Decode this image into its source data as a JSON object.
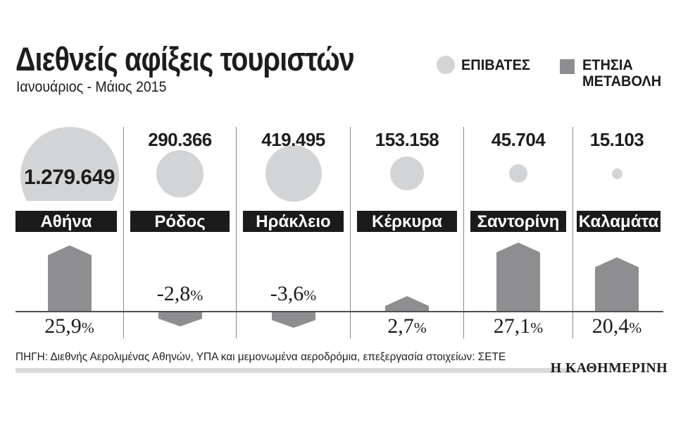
{
  "header": {
    "title": "Διεθνείς αφίξεις τουριστών",
    "subtitle": "Ιανουάριος - Μάιος 2015"
  },
  "legend": {
    "passengers_label": "ΕΠΙΒΑΤΕΣ",
    "change_label_line1": "ΕΤΗΣΙΑ",
    "change_label_line2": "ΜΕΤΑΒΟΛΗ",
    "passenger_color": "#d3d4d5",
    "change_color": "#8e8e90"
  },
  "symbols": {
    "percent": "%"
  },
  "cities": [
    {
      "name": "Αθήνα",
      "passengers": 1279649,
      "passengers_label": "1.279.649",
      "change": 25.9,
      "change_label": "25,9"
    },
    {
      "name": "Ρόδος",
      "passengers": 290366,
      "passengers_label": "290.366",
      "change": -2.8,
      "change_label": "-2,8"
    },
    {
      "name": "Ηράκλειο",
      "passengers": 419495,
      "passengers_label": "419.495",
      "change": -3.6,
      "change_label": "-3,6"
    },
    {
      "name": "Κέρκυρα",
      "passengers": 153158,
      "passengers_label": "153.158",
      "change": 2.7,
      "change_label": "2,7"
    },
    {
      "name": "Σαντορίνη",
      "passengers": 45704,
      "passengers_label": "45.704",
      "change": 27.1,
      "change_label": "27,1"
    },
    {
      "name": "Καλαμάτα",
      "passengers": 15103,
      "passengers_label": "15.103",
      "change": 20.4,
      "change_label": "20,4"
    }
  ],
  "chart_data": {
    "type": "bar",
    "subtype": "bubble-and-arrow-infographic",
    "title": "Διεθνείς αφίξεις τουριστών",
    "subtitle": "Ιανουάριος - Μάιος 2015",
    "categories": [
      "Αθήνα",
      "Ρόδος",
      "Ηράκλειο",
      "Κέρκυρα",
      "Σαντορίνη",
      "Καλαμάτα"
    ],
    "series": [
      {
        "name": "ΕΠΙΒΑΤΕΣ",
        "encoding": "circle-area",
        "values": [
          1279649,
          290366,
          419495,
          153158,
          45704,
          15103
        ]
      },
      {
        "name": "ΕΤΗΣΙΑ ΜΕΤΑΒΟΛΗ",
        "unit": "%",
        "encoding": "arrow-height",
        "values": [
          25.9,
          -2.8,
          -3.6,
          2.7,
          27.1,
          20.4
        ]
      }
    ],
    "legend_position": "top-right",
    "grid": false
  },
  "footer": {
    "source": "ΠΗΓΗ: Διεθνής Αερολιμένας Αθηνών, ΥΠΑ και μεμονωμένα αεροδρόμια, επεξεργασία στοιχείων: ΣΕΤΕ",
    "brand": "Η ΚΑΘΗΜΕΡΙΝΗ"
  }
}
